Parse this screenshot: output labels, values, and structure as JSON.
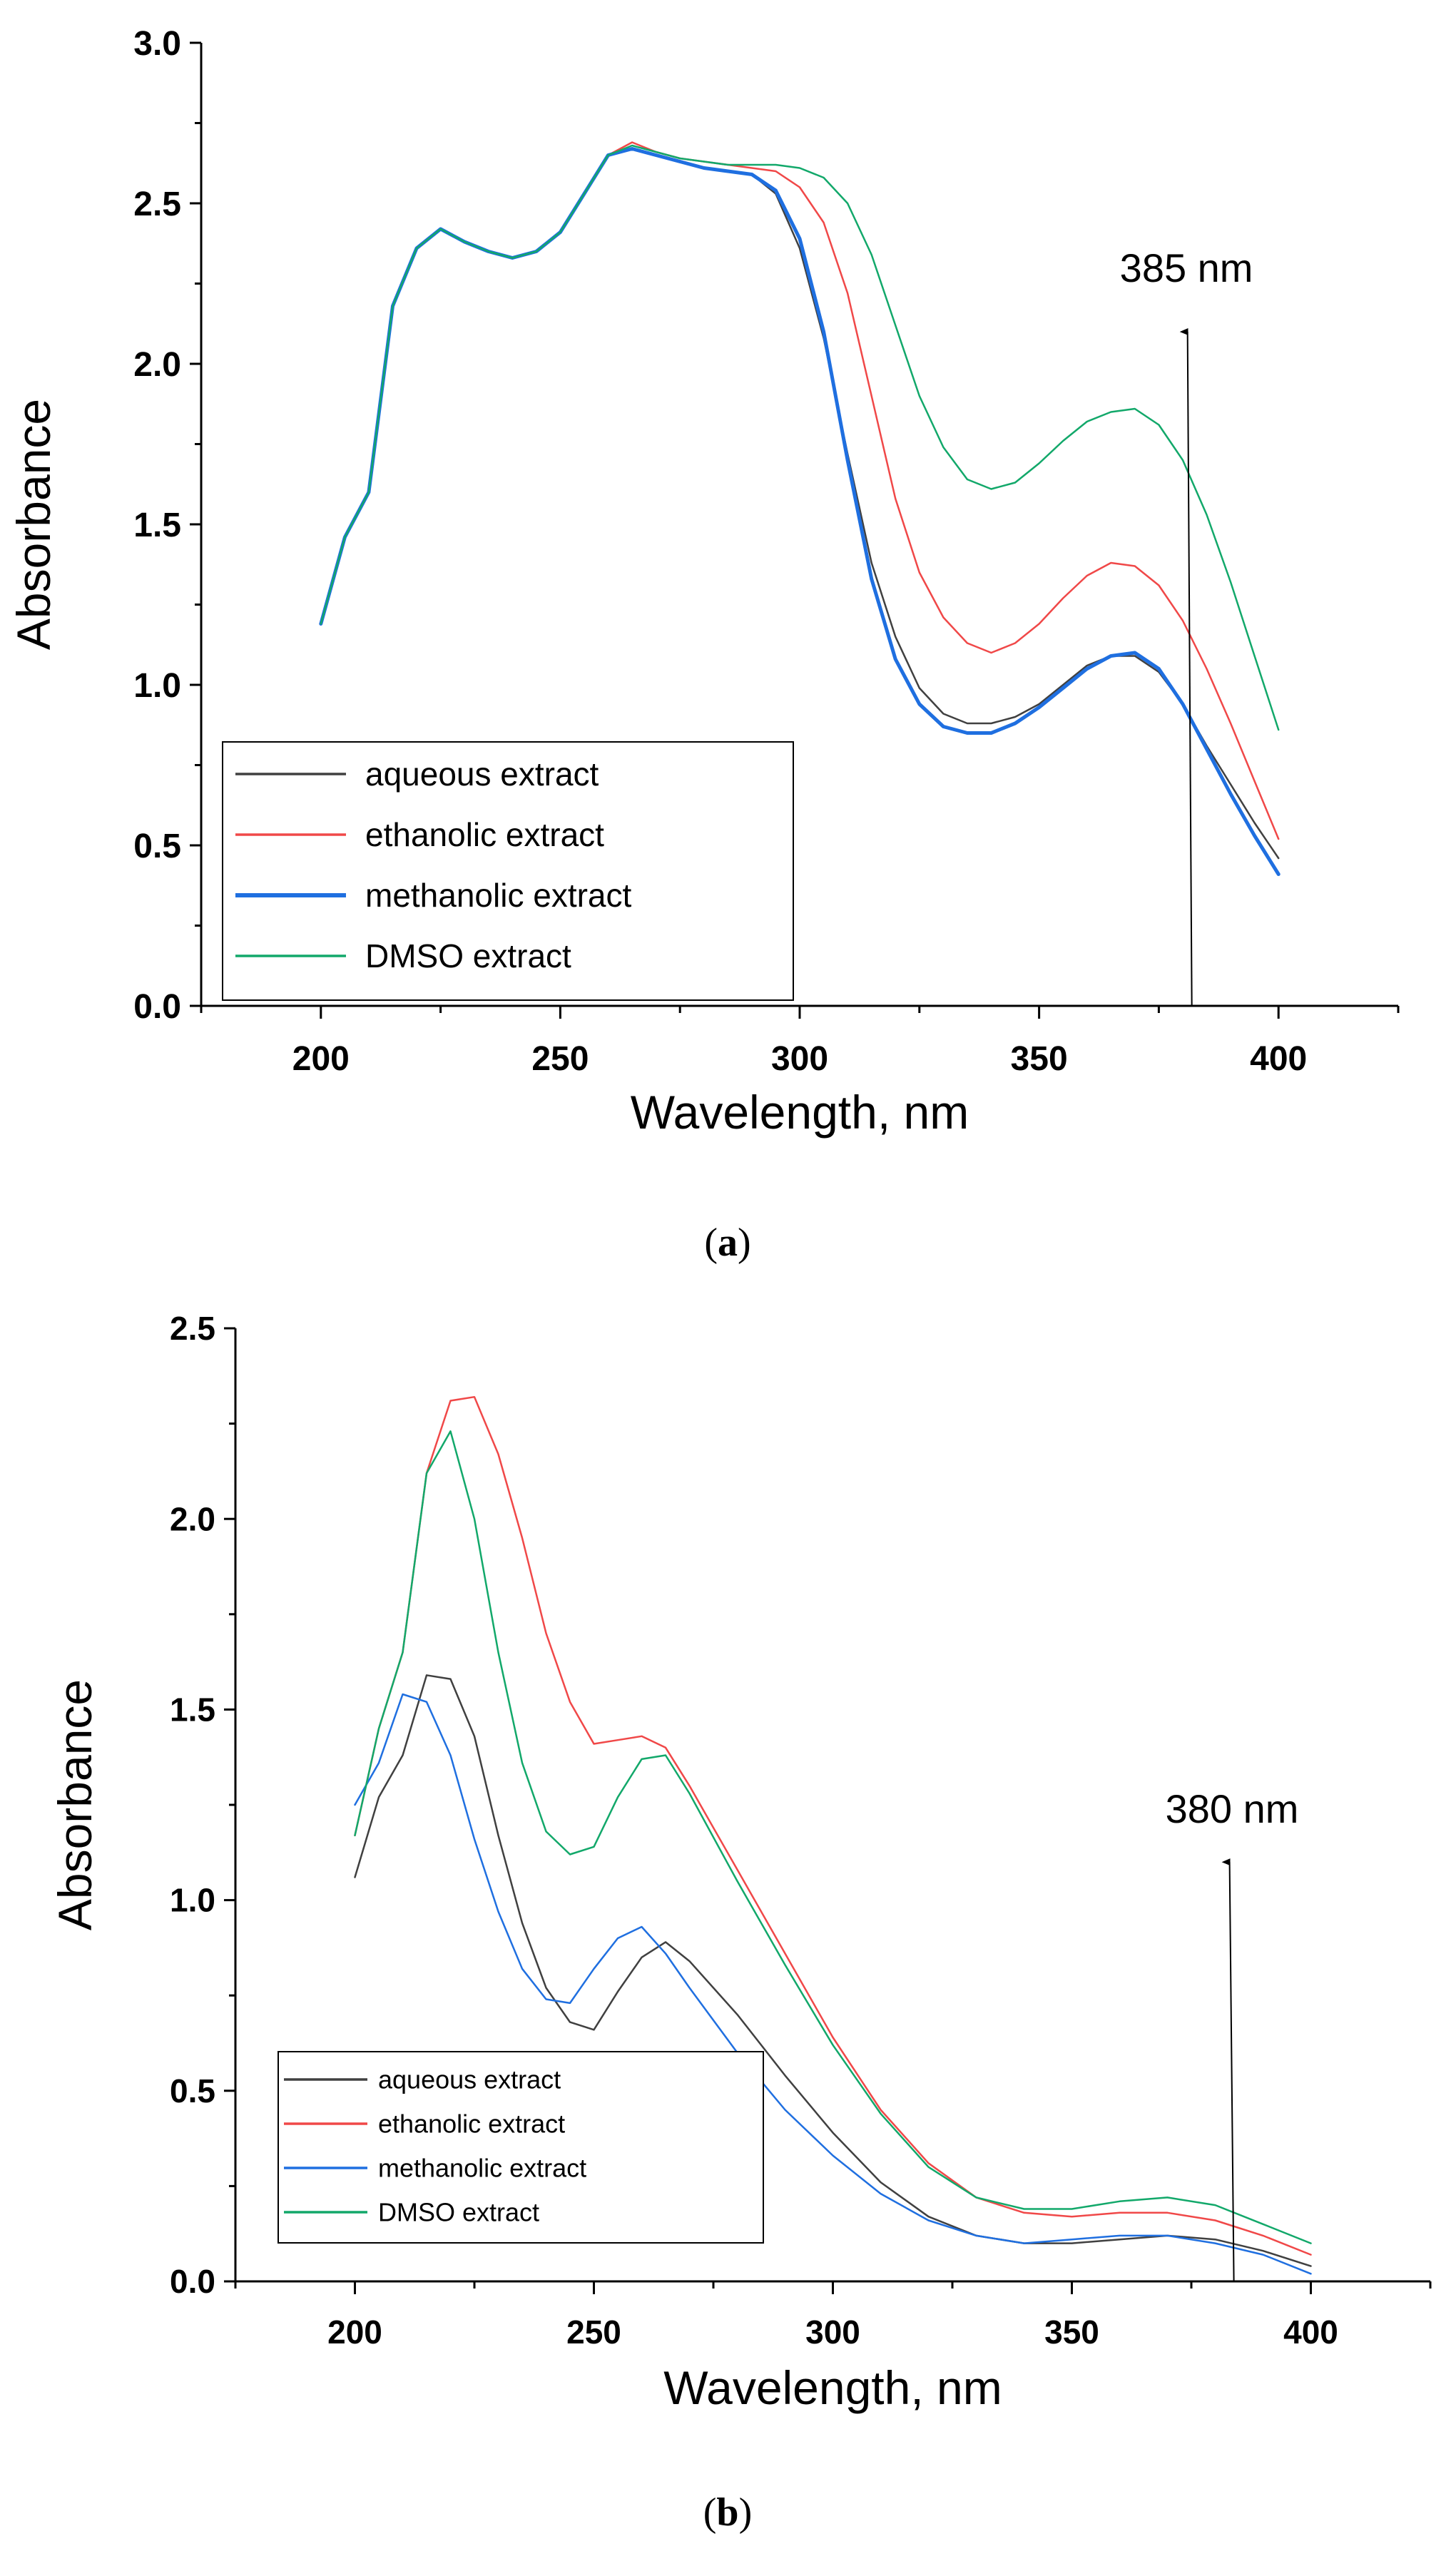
{
  "chart_data": [
    {
      "type": "line",
      "panel": "a",
      "caption_open": "(",
      "caption_letter": "a",
      "caption_close": ")",
      "xlabel": "Wavelength, nm",
      "ylabel": "Absorbance",
      "xlim": [
        175,
        425
      ],
      "ylim": [
        0,
        3.0
      ],
      "xticks": [
        200,
        250,
        300,
        350,
        400
      ],
      "xtick_labels": [
        "200",
        "250",
        "300",
        "350",
        "400"
      ],
      "yticks": [
        0,
        0.5,
        1.0,
        1.5,
        2.0,
        2.5,
        3.0
      ],
      "ytick_labels": [
        "0.0",
        "0.5",
        "1.0",
        "1.5",
        "2.0",
        "2.5",
        "3.0"
      ],
      "legend_position": "lower-left",
      "annotation": {
        "text": "385 nm",
        "x": 381,
        "y_from": 0,
        "y_to": 2.1
      },
      "series": [
        {
          "name": "aqueous extract",
          "color": "#404040",
          "width": 2.5,
          "x": [
            200,
            205,
            210,
            215,
            220,
            225,
            230,
            235,
            240,
            245,
            250,
            255,
            260,
            265,
            270,
            275,
            280,
            285,
            290,
            295,
            300,
            305,
            310,
            315,
            320,
            325,
            330,
            335,
            340,
            345,
            350,
            355,
            360,
            365,
            370,
            375,
            380,
            385,
            390,
            395,
            400
          ],
          "y": [
            1.19,
            1.46,
            1.6,
            2.18,
            2.36,
            2.42,
            2.38,
            2.35,
            2.33,
            2.35,
            2.41,
            2.53,
            2.65,
            2.67,
            2.65,
            2.63,
            2.61,
            2.6,
            2.59,
            2.53,
            2.36,
            2.08,
            1.72,
            1.38,
            1.15,
            0.99,
            0.91,
            0.88,
            0.88,
            0.9,
            0.94,
            1.0,
            1.06,
            1.09,
            1.09,
            1.04,
            0.94,
            0.81,
            0.69,
            0.57,
            0.46
          ]
        },
        {
          "name": "ethanolic extract",
          "color": "#f04848",
          "width": 2.5,
          "x": [
            200,
            205,
            210,
            215,
            220,
            225,
            230,
            235,
            240,
            245,
            250,
            255,
            260,
            265,
            270,
            275,
            280,
            285,
            290,
            295,
            300,
            305,
            310,
            315,
            320,
            325,
            330,
            335,
            340,
            345,
            350,
            355,
            360,
            365,
            370,
            375,
            380,
            385,
            390,
            395,
            400
          ],
          "y": [
            1.19,
            1.46,
            1.6,
            2.18,
            2.36,
            2.42,
            2.38,
            2.35,
            2.33,
            2.35,
            2.41,
            2.53,
            2.65,
            2.69,
            2.66,
            2.64,
            2.63,
            2.62,
            2.61,
            2.6,
            2.55,
            2.44,
            2.22,
            1.9,
            1.58,
            1.35,
            1.21,
            1.13,
            1.1,
            1.13,
            1.19,
            1.27,
            1.34,
            1.38,
            1.37,
            1.31,
            1.2,
            1.05,
            0.88,
            0.7,
            0.52
          ]
        },
        {
          "name": "methanolic extract",
          "color": "#1f6fe0",
          "width": 5,
          "x": [
            200,
            205,
            210,
            215,
            220,
            225,
            230,
            235,
            240,
            245,
            250,
            255,
            260,
            265,
            270,
            275,
            280,
            285,
            290,
            295,
            300,
            305,
            310,
            315,
            320,
            325,
            330,
            335,
            340,
            345,
            350,
            355,
            360,
            365,
            370,
            375,
            380,
            385,
            390,
            395,
            400
          ],
          "y": [
            1.19,
            1.46,
            1.6,
            2.18,
            2.36,
            2.42,
            2.38,
            2.35,
            2.33,
            2.35,
            2.41,
            2.53,
            2.65,
            2.67,
            2.65,
            2.63,
            2.61,
            2.6,
            2.59,
            2.54,
            2.39,
            2.1,
            1.7,
            1.33,
            1.08,
            0.94,
            0.87,
            0.85,
            0.85,
            0.88,
            0.93,
            0.99,
            1.05,
            1.09,
            1.1,
            1.05,
            0.94,
            0.8,
            0.66,
            0.53,
            0.41
          ]
        },
        {
          "name": "DMSO extract",
          "color": "#12a86a",
          "width": 2.5,
          "x": [
            200,
            205,
            210,
            215,
            220,
            225,
            230,
            235,
            240,
            245,
            250,
            255,
            260,
            265,
            270,
            275,
            280,
            285,
            290,
            295,
            300,
            305,
            310,
            315,
            320,
            325,
            330,
            335,
            340,
            345,
            350,
            355,
            360,
            365,
            370,
            375,
            380,
            385,
            390,
            395,
            400
          ],
          "y": [
            1.19,
            1.46,
            1.6,
            2.18,
            2.36,
            2.42,
            2.38,
            2.35,
            2.33,
            2.35,
            2.41,
            2.53,
            2.65,
            2.68,
            2.66,
            2.64,
            2.63,
            2.62,
            2.62,
            2.62,
            2.61,
            2.58,
            2.5,
            2.34,
            2.12,
            1.9,
            1.74,
            1.64,
            1.61,
            1.63,
            1.69,
            1.76,
            1.82,
            1.85,
            1.86,
            1.81,
            1.7,
            1.53,
            1.32,
            1.09,
            0.86
          ]
        }
      ]
    },
    {
      "type": "line",
      "panel": "b",
      "caption_open": "(",
      "caption_letter": "b",
      "caption_close": ")",
      "xlabel": "Wavelength, nm",
      "ylabel": "Absorbance",
      "xlim": [
        175,
        425
      ],
      "ylim": [
        0,
        2.5
      ],
      "xticks": [
        200,
        250,
        300,
        350,
        400
      ],
      "xtick_labels": [
        "200",
        "250",
        "300",
        "350",
        "400"
      ],
      "yticks": [
        0,
        0.5,
        1.0,
        1.5,
        2.0,
        2.5
      ],
      "ytick_labels": [
        "0.0",
        "0.5",
        "1.0",
        "1.5",
        "2.0",
        "2.5"
      ],
      "legend_position": "lower-left",
      "annotation": {
        "text": "380 nm",
        "x": 383,
        "y_from": 0,
        "y_to": 1.1
      },
      "series": [
        {
          "name": "aqueous extract",
          "color": "#404040",
          "width": 2.5,
          "x": [
            200,
            205,
            210,
            215,
            220,
            225,
            230,
            235,
            240,
            245,
            250,
            255,
            260,
            265,
            270,
            280,
            290,
            300,
            310,
            320,
            330,
            340,
            350,
            360,
            370,
            380,
            390,
            400
          ],
          "y": [
            1.06,
            1.27,
            1.38,
            1.59,
            1.58,
            1.43,
            1.17,
            0.94,
            0.77,
            0.68,
            0.66,
            0.76,
            0.85,
            0.89,
            0.84,
            0.7,
            0.54,
            0.39,
            0.26,
            0.17,
            0.12,
            0.1,
            0.1,
            0.11,
            0.12,
            0.11,
            0.08,
            0.04
          ]
        },
        {
          "name": "ethanolic extract",
          "color": "#f04848",
          "width": 2.5,
          "x": [
            200,
            205,
            210,
            215,
            220,
            225,
            230,
            235,
            240,
            245,
            250,
            255,
            260,
            265,
            270,
            280,
            290,
            300,
            310,
            320,
            330,
            340,
            350,
            360,
            370,
            380,
            390,
            400
          ],
          "y": [
            1.17,
            1.45,
            1.65,
            2.12,
            2.31,
            2.32,
            2.17,
            1.95,
            1.7,
            1.52,
            1.41,
            1.42,
            1.43,
            1.4,
            1.3,
            1.08,
            0.86,
            0.64,
            0.45,
            0.31,
            0.22,
            0.18,
            0.17,
            0.18,
            0.18,
            0.16,
            0.12,
            0.07
          ]
        },
        {
          "name": "methanolic extract",
          "color": "#1f6fe0",
          "width": 2.5,
          "x": [
            200,
            205,
            210,
            215,
            220,
            225,
            230,
            235,
            240,
            245,
            250,
            255,
            260,
            265,
            270,
            280,
            290,
            300,
            310,
            320,
            330,
            340,
            350,
            360,
            370,
            380,
            390,
            400
          ],
          "y": [
            1.25,
            1.36,
            1.54,
            1.52,
            1.38,
            1.16,
            0.97,
            0.82,
            0.74,
            0.73,
            0.82,
            0.9,
            0.93,
            0.86,
            0.77,
            0.6,
            0.45,
            0.33,
            0.23,
            0.16,
            0.12,
            0.1,
            0.11,
            0.12,
            0.12,
            0.1,
            0.07,
            0.02
          ]
        },
        {
          "name": "DMSO extract",
          "color": "#12a86a",
          "width": 2.5,
          "x": [
            200,
            205,
            210,
            215,
            220,
            225,
            230,
            235,
            240,
            245,
            250,
            255,
            260,
            265,
            270,
            280,
            290,
            300,
            310,
            320,
            330,
            340,
            350,
            360,
            370,
            380,
            390,
            400
          ],
          "y": [
            1.17,
            1.45,
            1.65,
            2.12,
            2.23,
            2.0,
            1.65,
            1.36,
            1.18,
            1.12,
            1.14,
            1.27,
            1.37,
            1.38,
            1.28,
            1.05,
            0.83,
            0.62,
            0.44,
            0.3,
            0.22,
            0.19,
            0.19,
            0.21,
            0.22,
            0.2,
            0.15,
            0.1
          ]
        }
      ]
    }
  ]
}
